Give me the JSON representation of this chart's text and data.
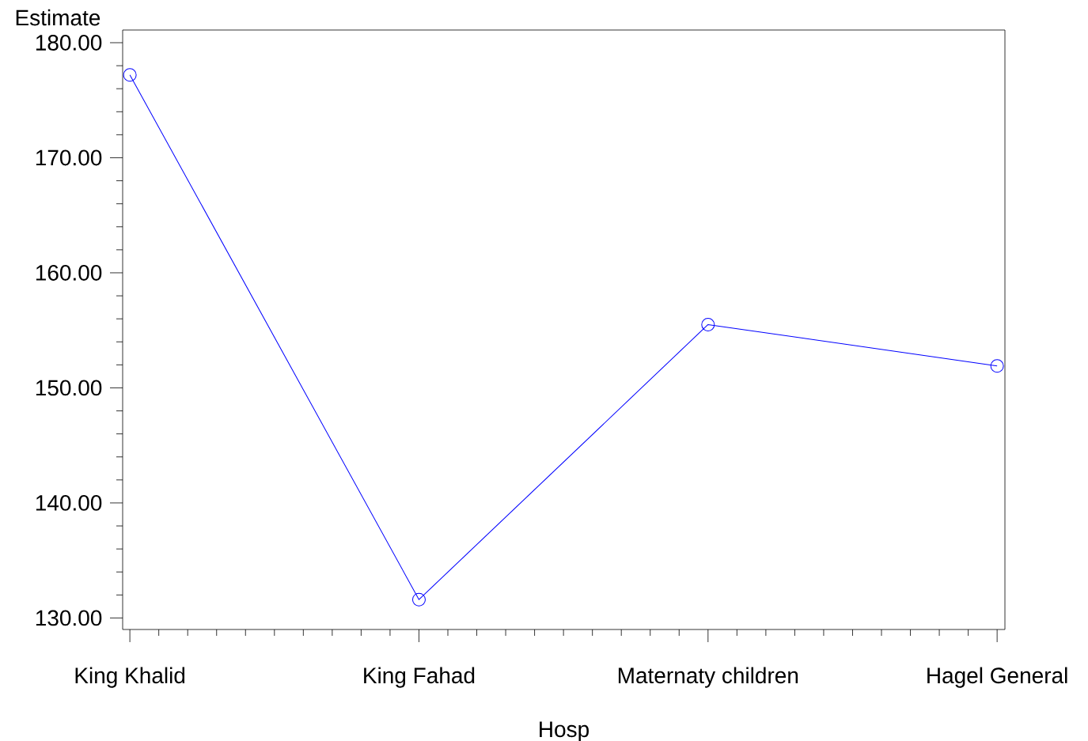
{
  "chart_data": {
    "type": "line",
    "xlabel": "Hosp",
    "ylabel": "Estimate",
    "categories": [
      "King Khalid",
      "King Fahad",
      "Maternaty children",
      "Hagel General"
    ],
    "series": [
      {
        "color": "#0000ff",
        "values": [
          177.2,
          131.6,
          155.5,
          151.9
        ]
      }
    ],
    "ylim": [
      129,
      181.1
    ],
    "yticks": [
      {
        "value": 130,
        "label": "130.00"
      },
      {
        "value": 140,
        "label": "140.00"
      },
      {
        "value": 150,
        "label": "150.00"
      },
      {
        "value": 160,
        "label": "160.00"
      },
      {
        "value": 170,
        "label": "170.00"
      },
      {
        "value": 180,
        "label": "180.00"
      }
    ],
    "marker": "circle",
    "line_style": "solid",
    "grid": false
  }
}
